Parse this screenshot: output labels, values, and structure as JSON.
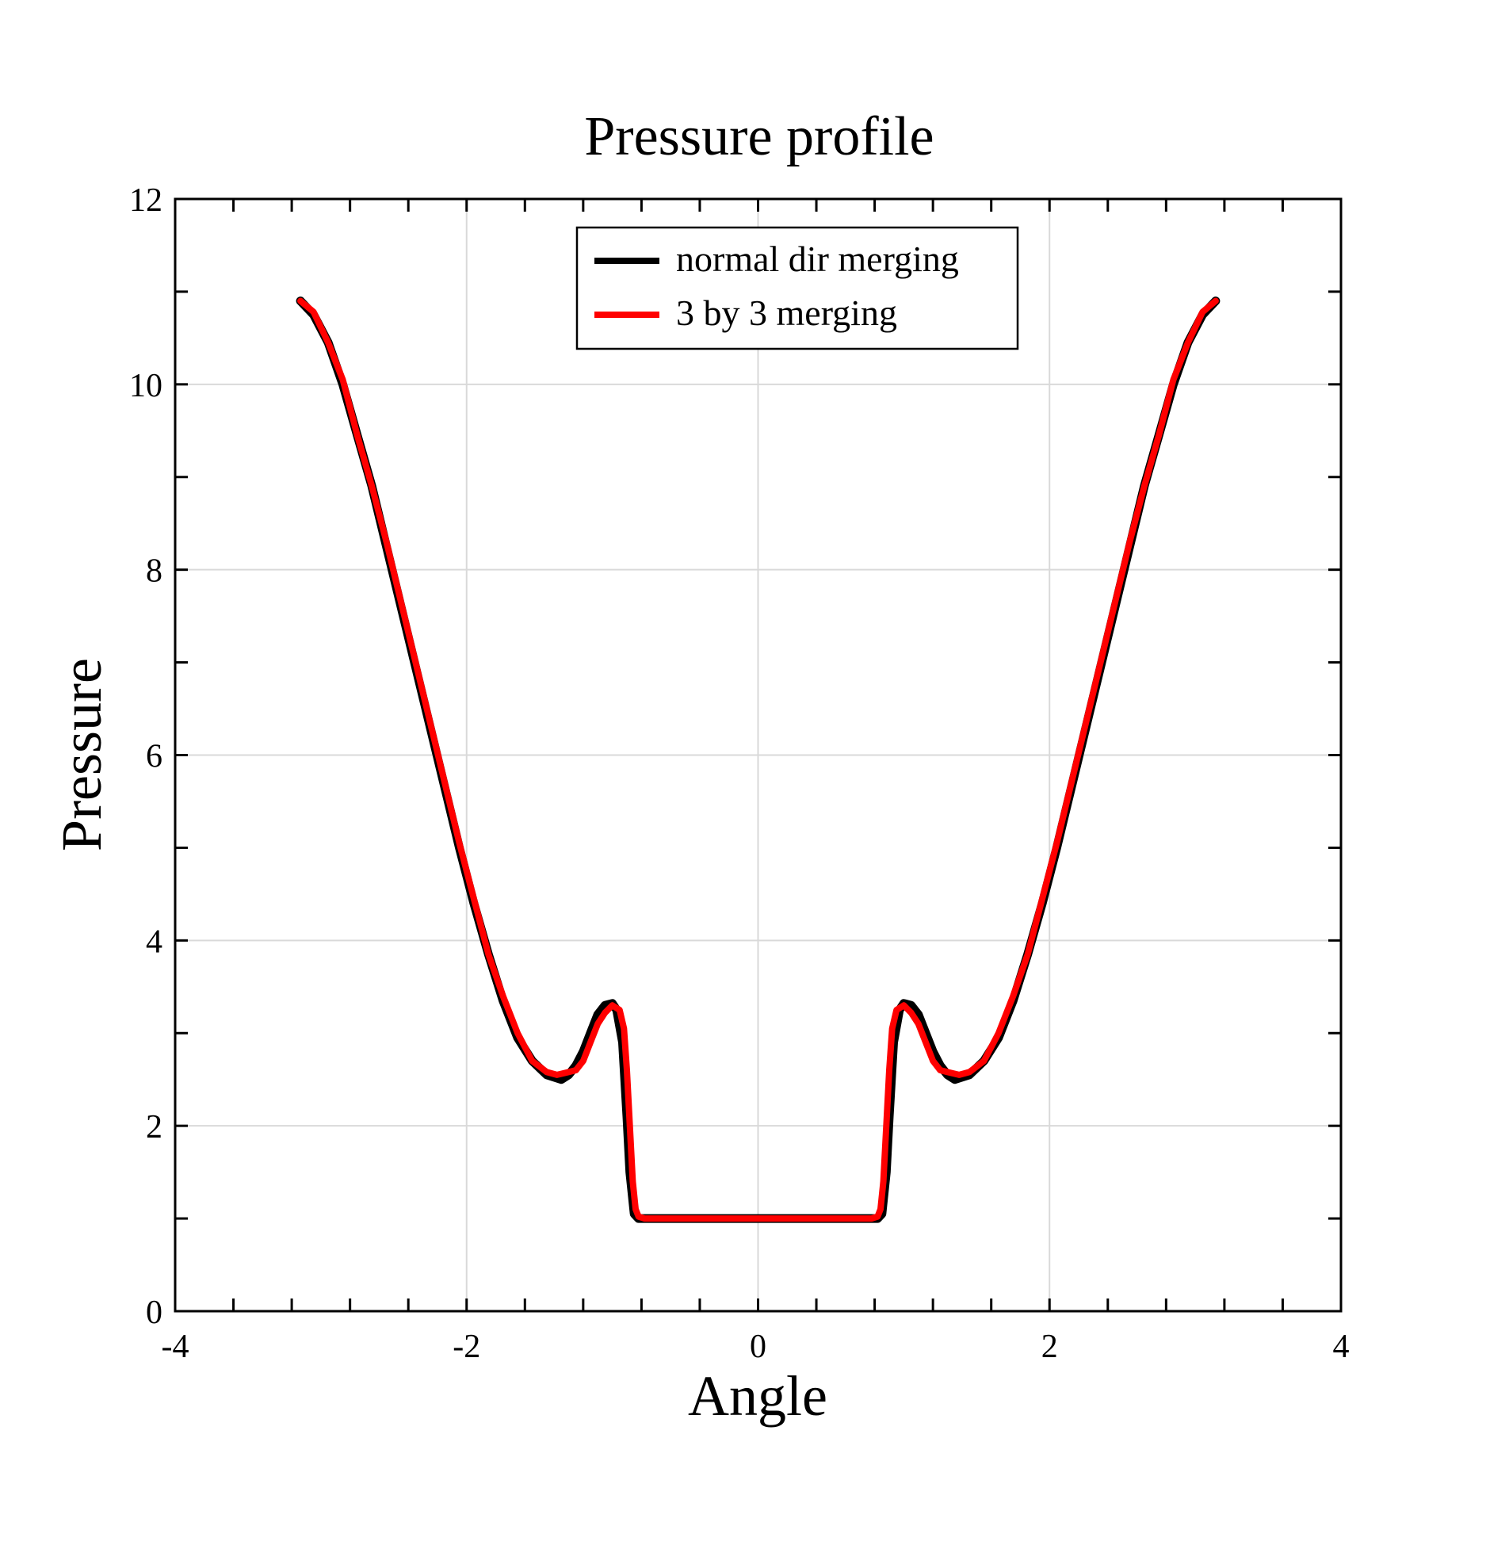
{
  "chart_data": {
    "type": "line",
    "title": "Pressure profile",
    "xlabel": "Angle",
    "ylabel": "Pressure",
    "xlim": [
      -4,
      4
    ],
    "ylim": [
      0,
      12
    ],
    "x_ticks": [
      -4,
      -2,
      0,
      2,
      4
    ],
    "y_ticks": [
      0,
      2,
      4,
      6,
      8,
      10,
      12
    ],
    "x_ticks_minor_step": 0.4,
    "y_ticks_minor_step": 1,
    "grid": true,
    "grid_x": [
      -2,
      0,
      2
    ],
    "grid_y": [
      2,
      4,
      6,
      8,
      10
    ],
    "legend": {
      "position": "top-center"
    },
    "series": [
      {
        "name": "normal dir merging",
        "color": "#000000",
        "x": [
          -3.14,
          -3.05,
          -2.95,
          -2.85,
          -2.75,
          -2.65,
          -2.55,
          -2.45,
          -2.35,
          -2.25,
          -2.15,
          -2.05,
          -1.95,
          -1.85,
          -1.75,
          -1.65,
          -1.55,
          -1.45,
          -1.35,
          -1.3,
          -1.25,
          -1.2,
          -1.15,
          -1.1,
          -1.05,
          -1.0,
          -0.97,
          -0.93,
          -0.9,
          -0.88,
          -0.85,
          -0.82,
          -0.78,
          -0.7,
          -0.5,
          -0.25,
          0.0,
          0.25,
          0.5,
          0.7,
          0.78,
          0.82,
          0.85,
          0.88,
          0.9,
          0.93,
          0.97,
          1.0,
          1.05,
          1.1,
          1.15,
          1.2,
          1.25,
          1.3,
          1.35,
          1.45,
          1.55,
          1.65,
          1.75,
          1.85,
          1.95,
          2.05,
          2.15,
          2.25,
          2.35,
          2.45,
          2.55,
          2.65,
          2.75,
          2.85,
          2.95,
          3.05,
          3.14
        ],
        "y": [
          10.9,
          10.75,
          10.45,
          10.0,
          9.45,
          8.9,
          8.25,
          7.6,
          6.95,
          6.3,
          5.65,
          5.0,
          4.4,
          3.85,
          3.35,
          2.95,
          2.7,
          2.55,
          2.5,
          2.55,
          2.65,
          2.8,
          3.0,
          3.2,
          3.3,
          3.32,
          3.25,
          2.9,
          2.1,
          1.5,
          1.05,
          1.0,
          1.0,
          1.0,
          1.0,
          1.0,
          1.0,
          1.0,
          1.0,
          1.0,
          1.0,
          1.0,
          1.05,
          1.5,
          2.1,
          2.9,
          3.25,
          3.32,
          3.3,
          3.2,
          3.0,
          2.8,
          2.65,
          2.55,
          2.5,
          2.55,
          2.7,
          2.95,
          3.35,
          3.85,
          4.4,
          5.0,
          5.65,
          6.3,
          6.95,
          7.6,
          8.25,
          8.9,
          9.45,
          10.0,
          10.45,
          10.75,
          10.9
        ]
      },
      {
        "name": "3 by 3 merging",
        "color": "#ff0000",
        "x": [
          -3.14,
          -3.05,
          -2.95,
          -2.85,
          -2.75,
          -2.65,
          -2.55,
          -2.45,
          -2.35,
          -2.25,
          -2.15,
          -2.05,
          -1.95,
          -1.85,
          -1.75,
          -1.65,
          -1.55,
          -1.45,
          -1.38,
          -1.3,
          -1.25,
          -1.2,
          -1.15,
          -1.1,
          -1.05,
          -1.0,
          -0.95,
          -0.92,
          -0.9,
          -0.88,
          -0.86,
          -0.84,
          -0.82,
          -0.78,
          -0.7,
          -0.5,
          -0.25,
          0.0,
          0.25,
          0.5,
          0.7,
          0.78,
          0.82,
          0.84,
          0.86,
          0.88,
          0.9,
          0.92,
          0.95,
          1.0,
          1.05,
          1.1,
          1.15,
          1.2,
          1.25,
          1.3,
          1.38,
          1.45,
          1.55,
          1.65,
          1.75,
          1.85,
          1.95,
          2.05,
          2.15,
          2.25,
          2.35,
          2.45,
          2.55,
          2.65,
          2.75,
          2.85,
          2.95,
          3.05,
          3.14
        ],
        "y": [
          10.9,
          10.78,
          10.45,
          10.05,
          9.45,
          8.9,
          8.3,
          7.65,
          7.0,
          6.35,
          5.7,
          5.05,
          4.45,
          3.85,
          3.4,
          3.0,
          2.7,
          2.58,
          2.55,
          2.58,
          2.6,
          2.7,
          2.9,
          3.1,
          3.22,
          3.3,
          3.25,
          3.05,
          2.6,
          2.0,
          1.4,
          1.1,
          1.02,
          1.0,
          1.0,
          1.0,
          1.0,
          1.0,
          1.0,
          1.0,
          1.0,
          1.0,
          1.02,
          1.1,
          1.4,
          2.0,
          2.6,
          3.05,
          3.25,
          3.3,
          3.22,
          3.1,
          2.9,
          2.7,
          2.6,
          2.58,
          2.55,
          2.58,
          2.7,
          3.0,
          3.4,
          3.85,
          4.45,
          5.05,
          5.7,
          6.35,
          7.0,
          7.65,
          8.3,
          8.9,
          9.45,
          10.05,
          10.45,
          10.78,
          10.9
        ]
      }
    ]
  }
}
